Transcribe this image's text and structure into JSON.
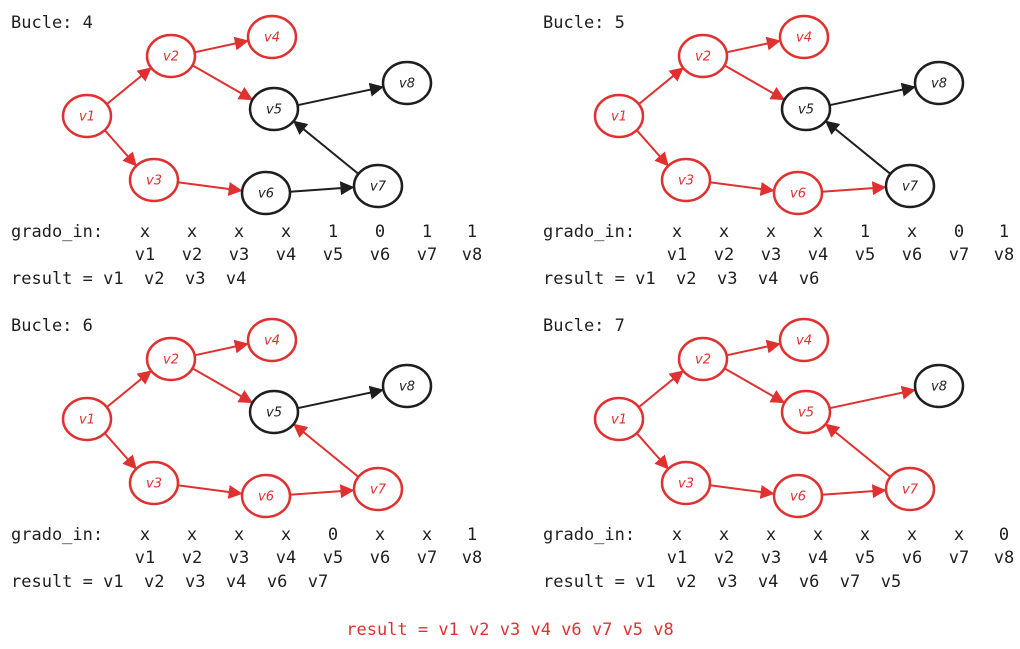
{
  "colors": {
    "active": "#e03131",
    "inactive": "#1e1e1e"
  },
  "panels": [
    {
      "title": "Bucle: 4",
      "node_labels": [
        "v1",
        "v2",
        "v3",
        "v4",
        "v5",
        "v6",
        "v7",
        "v8"
      ],
      "processed": [
        "v1",
        "v2",
        "v3",
        "v4"
      ],
      "grado_label": "grado_in:",
      "grado_values": [
        "x",
        "x",
        "x",
        "x",
        "1",
        "0",
        "1",
        "1"
      ],
      "vertex_row": [
        "v1",
        "v2",
        "v3",
        "v4",
        "v5",
        "v6",
        "v7",
        "v8"
      ],
      "result_text": "result = v1  v2  v3  v4"
    },
    {
      "title": "Bucle: 5",
      "node_labels": [
        "v1",
        "v2",
        "v3",
        "v4",
        "v5",
        "v6",
        "v7",
        "v8"
      ],
      "processed": [
        "v1",
        "v2",
        "v3",
        "v4",
        "v6"
      ],
      "grado_label": "grado_in:",
      "grado_values": [
        "x",
        "x",
        "x",
        "x",
        "1",
        "x",
        "0",
        "1"
      ],
      "vertex_row": [
        "v1",
        "v2",
        "v3",
        "v4",
        "v5",
        "v6",
        "v7",
        "v8"
      ],
      "result_text": "result = v1  v2  v3  v4  v6"
    },
    {
      "title": "Bucle: 6",
      "node_labels": [
        "v1",
        "v2",
        "v3",
        "v4",
        "v5",
        "v6",
        "v7",
        "v8"
      ],
      "processed": [
        "v1",
        "v2",
        "v3",
        "v4",
        "v6",
        "v7"
      ],
      "grado_label": "grado_in:",
      "grado_values": [
        "x",
        "x",
        "x",
        "x",
        "0",
        "x",
        "x",
        "1"
      ],
      "vertex_row": [
        "v1",
        "v2",
        "v3",
        "v4",
        "v5",
        "v6",
        "v7",
        "v8"
      ],
      "result_text": "result = v1  v2  v3  v4  v6  v7"
    },
    {
      "title": "Bucle: 7",
      "node_labels": [
        "v1",
        "v2",
        "v3",
        "v4",
        "v5",
        "v6",
        "v7",
        "v8"
      ],
      "processed": [
        "v1",
        "v2",
        "v3",
        "v4",
        "v6",
        "v7",
        "v5"
      ],
      "grado_label": "grado_in:",
      "grado_values": [
        "x",
        "x",
        "x",
        "x",
        "x",
        "x",
        "x",
        "0"
      ],
      "vertex_row": [
        "v1",
        "v2",
        "v3",
        "v4",
        "v5",
        "v6",
        "v7",
        "v8"
      ],
      "result_text": "result = v1  v2  v3  v4  v6  v7  v5"
    }
  ],
  "final_result": "result = v1  v2  v3  v4  v6  v7  v5  v8"
}
